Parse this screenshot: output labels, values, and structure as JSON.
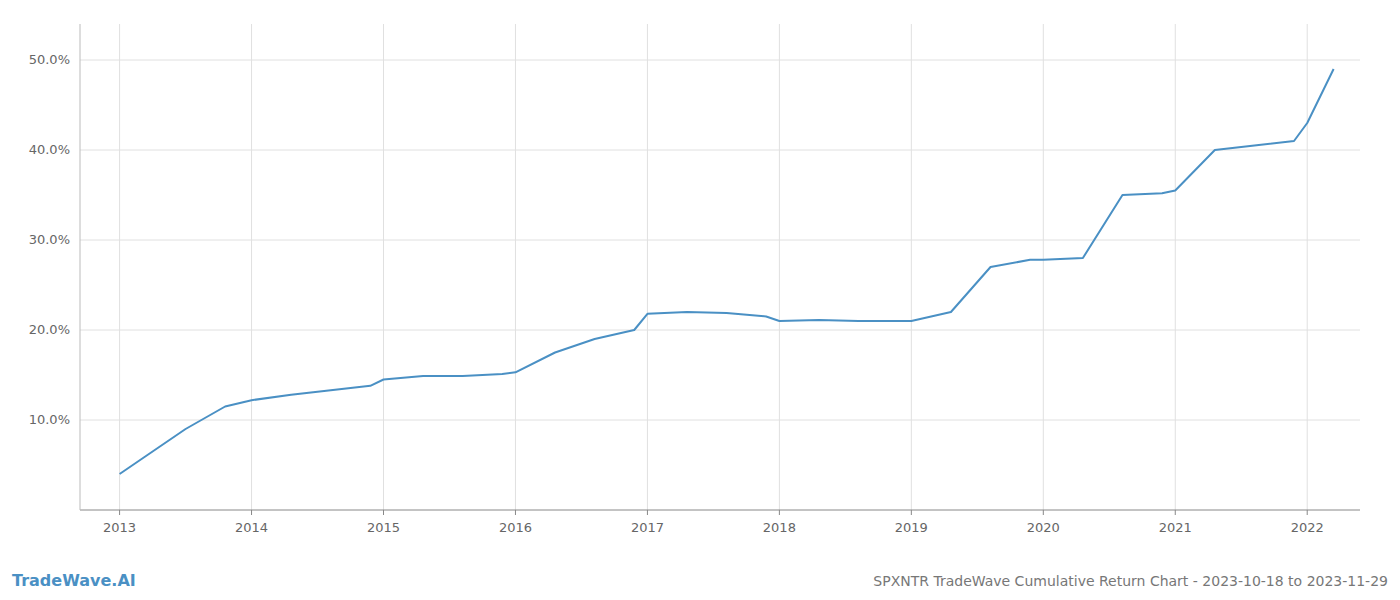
{
  "chart_data": {
    "type": "line",
    "title": "SPXNTR TradeWave Cumulative Return Chart - 2023-10-18 to 2023-11-29",
    "annotations": [
      "TradeWave.AI"
    ],
    "x": [
      2013.0,
      2013.2,
      2013.5,
      2013.8,
      2014.0,
      2014.3,
      2014.6,
      2014.9,
      2015.0,
      2015.3,
      2015.6,
      2015.9,
      2016.0,
      2016.3,
      2016.6,
      2016.9,
      2017.0,
      2017.3,
      2017.6,
      2017.9,
      2018.0,
      2018.3,
      2018.6,
      2018.9,
      2019.0,
      2019.3,
      2019.6,
      2019.9,
      2020.0,
      2020.3,
      2020.6,
      2020.9,
      2021.0,
      2021.3,
      2021.6,
      2021.9,
      2022.0,
      2022.2
    ],
    "values": [
      4.0,
      6.0,
      9.0,
      11.5,
      12.2,
      12.8,
      13.3,
      13.8,
      14.5,
      14.9,
      14.9,
      15.1,
      15.3,
      17.5,
      19.0,
      20.0,
      21.8,
      22.0,
      21.9,
      21.5,
      21.0,
      21.1,
      21.0,
      21.0,
      21.0,
      22.0,
      27.0,
      27.8,
      27.8,
      28.0,
      35.0,
      35.2,
      35.5,
      40.0,
      40.5,
      41.0,
      43.0,
      49.0
    ],
    "color": "#4a90c4",
    "xlim": [
      2012.7,
      2022.4
    ],
    "xticks": [
      2013,
      2014,
      2015,
      2016,
      2017,
      2018,
      2019,
      2020,
      2021,
      2022
    ],
    "ylim": [
      0,
      54
    ],
    "yticks": [
      {
        "value": 10.0,
        "label": "10.0%"
      },
      {
        "value": 20.0,
        "label": "20.0%"
      },
      {
        "value": 30.0,
        "label": "30.0%"
      },
      {
        "value": 40.0,
        "label": "40.0%"
      },
      {
        "value": 50.0,
        "label": "50.0%"
      }
    ],
    "grid": true
  }
}
